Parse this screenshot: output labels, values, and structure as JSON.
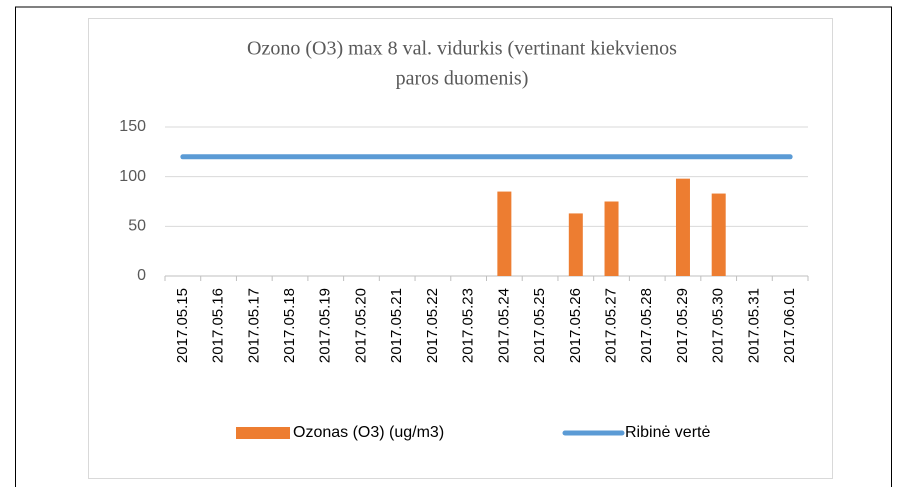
{
  "chart_data": {
    "type": "bar",
    "title": [
      "Ozono (O3) max 8 val. vidurkis (vertinant kiekvienos",
      "paros duomenis)"
    ],
    "categories": [
      "2017.05.15",
      "2017.05.16",
      "2017.05.17",
      "2017.05.18",
      "2017.05.19",
      "2017.05.20",
      "2017.05.21",
      "2017.05.22",
      "2017.05.23",
      "2017.05.24",
      "2017.05.25",
      "2017.05.26",
      "2017.05.27",
      "2017.05.28",
      "2017.05.29",
      "2017.05.30",
      "2017.05.31",
      "2017.06.01"
    ],
    "series": [
      {
        "name": "Ozonas (O3) (ug/m3)",
        "type": "bar",
        "color": "#ed7d31",
        "values": [
          null,
          null,
          null,
          null,
          null,
          null,
          null,
          null,
          null,
          85,
          null,
          63,
          75,
          null,
          98,
          83,
          null,
          null
        ]
      },
      {
        "name": "Ribinė vertė",
        "type": "line",
        "color": "#5b9bd5",
        "values": [
          120,
          120,
          120,
          120,
          120,
          120,
          120,
          120,
          120,
          120,
          120,
          120,
          120,
          120,
          120,
          120,
          120,
          120
        ]
      }
    ],
    "ylim": [
      0,
      150
    ],
    "yticks": [
      0,
      50,
      100,
      150
    ],
    "grid": true
  }
}
